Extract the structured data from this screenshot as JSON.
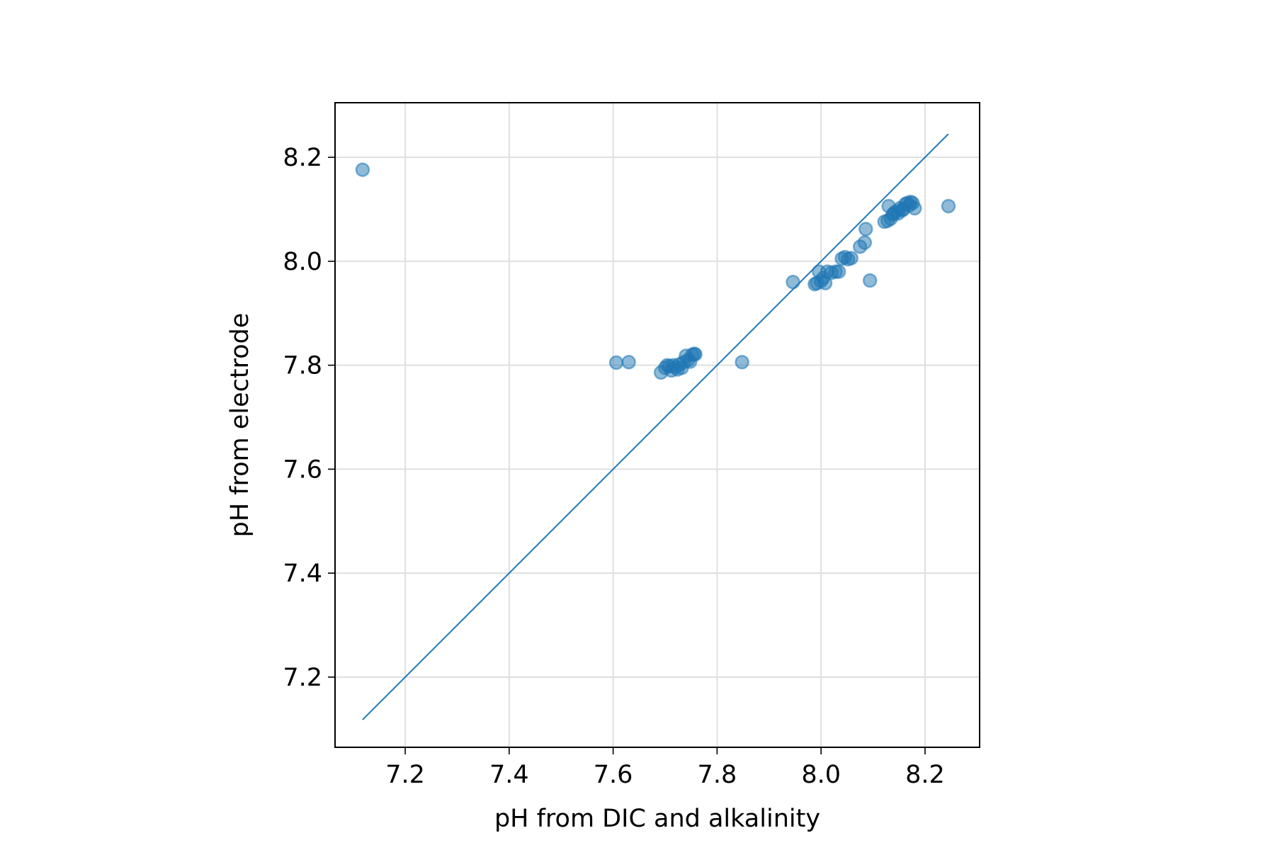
{
  "chart_data": {
    "type": "scatter",
    "title": "",
    "xlabel": "pH from DIC and alkalinity",
    "ylabel": "pH from electrode",
    "xlim": [
      7.065,
      8.305
    ],
    "ylim": [
      7.065,
      8.305
    ],
    "xticks": [
      7.2,
      7.4,
      7.6,
      7.8,
      8.0,
      8.2
    ],
    "yticks": [
      7.2,
      7.4,
      7.6,
      7.8,
      8.0,
      8.2
    ],
    "xtick_labels": [
      "7.2",
      "7.4",
      "7.6",
      "7.8",
      "8.0",
      "8.2"
    ],
    "ytick_labels": [
      "7.2",
      "7.4",
      "7.6",
      "7.8",
      "8.0",
      "8.2"
    ],
    "grid": true,
    "series": [
      {
        "kind": "scatter",
        "color": "#1f77b4",
        "points": [
          [
            7.118,
            8.176
          ],
          [
            7.606,
            7.805
          ],
          [
            7.63,
            7.806
          ],
          [
            7.692,
            7.786
          ],
          [
            7.7,
            7.795
          ],
          [
            7.704,
            7.8
          ],
          [
            7.708,
            7.798
          ],
          [
            7.712,
            7.79
          ],
          [
            7.716,
            7.8
          ],
          [
            7.72,
            7.796
          ],
          [
            7.724,
            7.792
          ],
          [
            7.728,
            7.802
          ],
          [
            7.732,
            7.795
          ],
          [
            7.736,
            7.806
          ],
          [
            7.74,
            7.818
          ],
          [
            7.744,
            7.81
          ],
          [
            7.748,
            7.807
          ],
          [
            7.752,
            7.82
          ],
          [
            7.756,
            7.822
          ],
          [
            7.758,
            7.821
          ],
          [
            7.848,
            7.806
          ],
          [
            7.946,
            7.96
          ],
          [
            7.988,
            7.956
          ],
          [
            7.992,
            7.958
          ],
          [
            7.996,
            7.98
          ],
          [
            8.0,
            7.962
          ],
          [
            8.004,
            7.968
          ],
          [
            8.008,
            7.958
          ],
          [
            8.012,
            7.98
          ],
          [
            8.02,
            7.978
          ],
          [
            8.028,
            7.98
          ],
          [
            8.034,
            7.98
          ],
          [
            8.04,
            8.005
          ],
          [
            8.046,
            8.008
          ],
          [
            8.052,
            8.004
          ],
          [
            8.058,
            8.006
          ],
          [
            8.075,
            8.028
          ],
          [
            8.084,
            8.036
          ],
          [
            8.086,
            8.062
          ],
          [
            8.094,
            7.963
          ],
          [
            8.122,
            8.076
          ],
          [
            8.128,
            8.078
          ],
          [
            8.13,
            8.106
          ],
          [
            8.134,
            8.082
          ],
          [
            8.138,
            8.09
          ],
          [
            8.14,
            8.092
          ],
          [
            8.144,
            8.096
          ],
          [
            8.148,
            8.092
          ],
          [
            8.152,
            8.102
          ],
          [
            8.156,
            8.098
          ],
          [
            8.158,
            8.1
          ],
          [
            8.162,
            8.11
          ],
          [
            8.166,
            8.112
          ],
          [
            8.17,
            8.108
          ],
          [
            8.172,
            8.114
          ],
          [
            8.176,
            8.112
          ],
          [
            8.18,
            8.102
          ],
          [
            8.245,
            8.106
          ]
        ]
      },
      {
        "kind": "line",
        "color": "#1f77b4",
        "x": [
          7.118,
          8.245
        ],
        "y": [
          7.118,
          8.245
        ]
      }
    ]
  }
}
